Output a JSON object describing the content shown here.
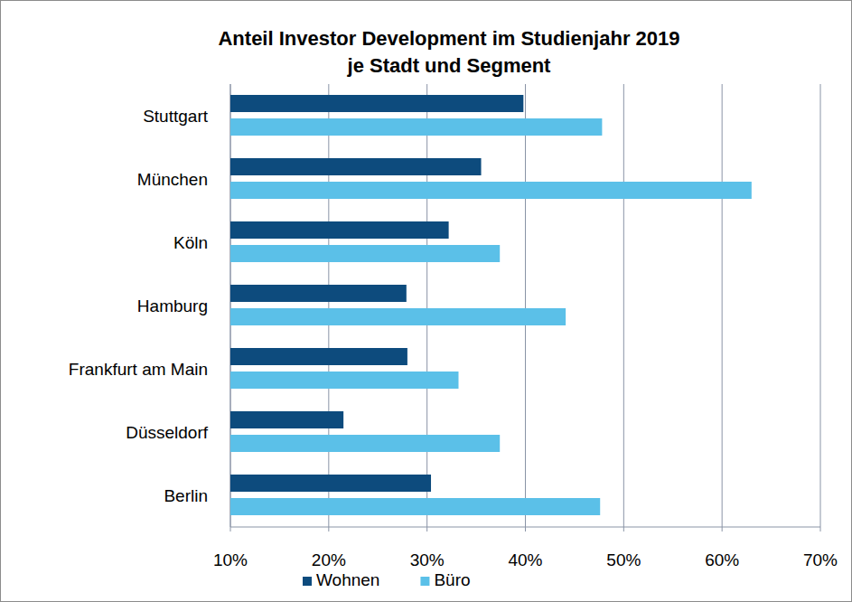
{
  "chart_data": {
    "type": "bar",
    "orientation": "horizontal",
    "title": "Anteil Investor Development im Studienjahr 2019\nje Stadt und Segment",
    "categories": [
      "Stuttgart",
      "München",
      "Köln",
      "Hamburg",
      "Frankfurt am Main",
      "Düsseldorf",
      "Berlin"
    ],
    "series": [
      {
        "name": "Wohnen",
        "color": "#0d4b7d",
        "values": [
          39.8,
          35.5,
          32.2,
          27.9,
          28.0,
          21.5,
          30.4
        ]
      },
      {
        "name": "Büro",
        "color": "#5bc0e8",
        "values": [
          47.8,
          63.0,
          37.4,
          44.1,
          33.2,
          37.4,
          47.6
        ]
      }
    ],
    "xlim": [
      10,
      70
    ],
    "xticks": [
      {
        "value": 10,
        "label": "10%"
      },
      {
        "value": 20,
        "label": "20%"
      },
      {
        "value": 30,
        "label": "30%"
      },
      {
        "value": 40,
        "label": "40%"
      },
      {
        "value": 50,
        "label": "50%"
      },
      {
        "value": 60,
        "label": "60%"
      },
      {
        "value": 70,
        "label": "70%"
      }
    ],
    "grid": true,
    "legend": "bottom"
  }
}
